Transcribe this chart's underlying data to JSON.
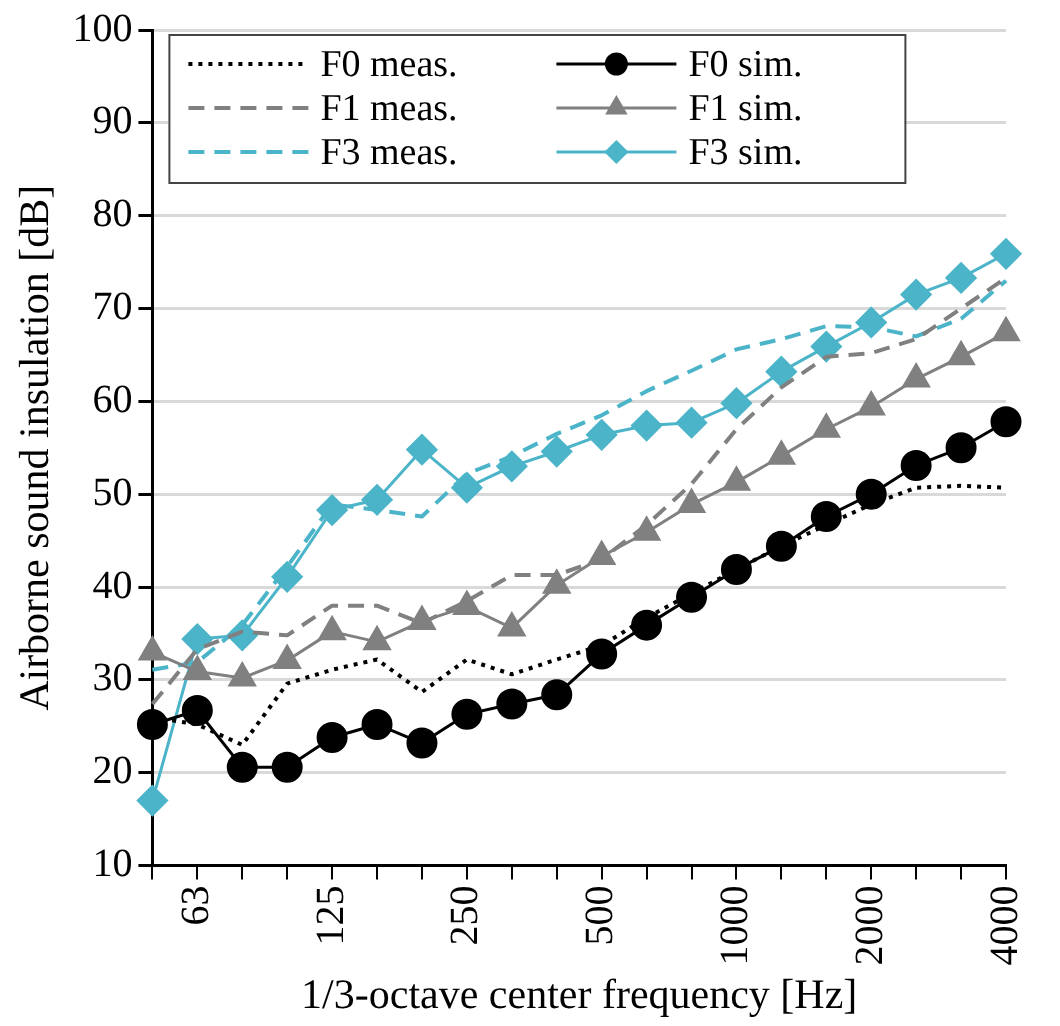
{
  "chart_data": {
    "type": "line",
    "xlabel": "1/3-octave center frequency [Hz]",
    "ylabel": "Airborne sound insulation [dB]",
    "categories": [
      null,
      "63",
      null,
      null,
      "125",
      null,
      null,
      "250",
      null,
      null,
      "500",
      null,
      null,
      "1000",
      null,
      null,
      "2000",
      null,
      null,
      "4000"
    ],
    "ylim": [
      10,
      100
    ],
    "yticks": [
      10,
      20,
      30,
      40,
      50,
      60,
      70,
      80,
      90,
      100
    ],
    "grid": "y",
    "legend": "top left",
    "series": [
      {
        "name": "F0 meas.",
        "color": "#000000",
        "marker": "none",
        "line_style": "dotted",
        "values": [
          26,
          25.2,
          23,
          29.6,
          31.1,
          32.2,
          28.7,
          32.2,
          30.6,
          32.2,
          33.7,
          36.7,
          39.3,
          41.9,
          44.4,
          46.7,
          48.9,
          50.7,
          50.9,
          50.7
        ]
      },
      {
        "name": "F0 sim.",
        "color": "#000000",
        "marker": "circle",
        "line_style": "solid",
        "values": [
          25.2,
          26.7,
          20.6,
          20.6,
          23.8,
          25.2,
          23.2,
          26.3,
          27.4,
          28.4,
          32.8,
          35.9,
          38.9,
          41.9,
          44.4,
          47.6,
          50,
          53.1,
          55,
          57.8
        ]
      },
      {
        "name": "F1 meas.",
        "color": "#808080",
        "marker": "none",
        "line_style": "dashed",
        "values": [
          27.4,
          33.3,
          35.2,
          34.8,
          38,
          38,
          36.1,
          38.5,
          41.3,
          41.3,
          43,
          46.7,
          51.1,
          57,
          61.5,
          64.8,
          65.2,
          66.7,
          70,
          73.3
        ]
      },
      {
        "name": "F1 sim.",
        "color": "#808080",
        "marker": "triangle",
        "line_style": "solid",
        "values": [
          33,
          30.9,
          30.2,
          32.1,
          35.2,
          34.1,
          36.3,
          37.9,
          35.6,
          40.2,
          43.3,
          45.9,
          48.9,
          51.3,
          54.1,
          57,
          59.4,
          62.4,
          64.8,
          67.4
        ]
      },
      {
        "name": "F3 meas.",
        "color": "#4bb4c8",
        "marker": "none",
        "line_style": "dashed",
        "values": [
          31.1,
          31.9,
          35.9,
          42.2,
          48.9,
          48.3,
          47.6,
          52.2,
          54.1,
          56.5,
          58.5,
          61.1,
          63.3,
          65.6,
          66.7,
          68.1,
          68,
          67,
          68.9,
          73
        ]
      },
      {
        "name": "F3 sim.",
        "color": "#4bb4c8",
        "marker": "diamond",
        "line_style": "solid",
        "values": [
          17,
          34.4,
          34.8,
          41.1,
          48.3,
          49.4,
          54.8,
          50.7,
          53,
          54.6,
          56.4,
          57.4,
          57.7,
          59.8,
          63.2,
          65.9,
          68.5,
          71.5,
          73.3,
          75.9
        ]
      }
    ]
  }
}
